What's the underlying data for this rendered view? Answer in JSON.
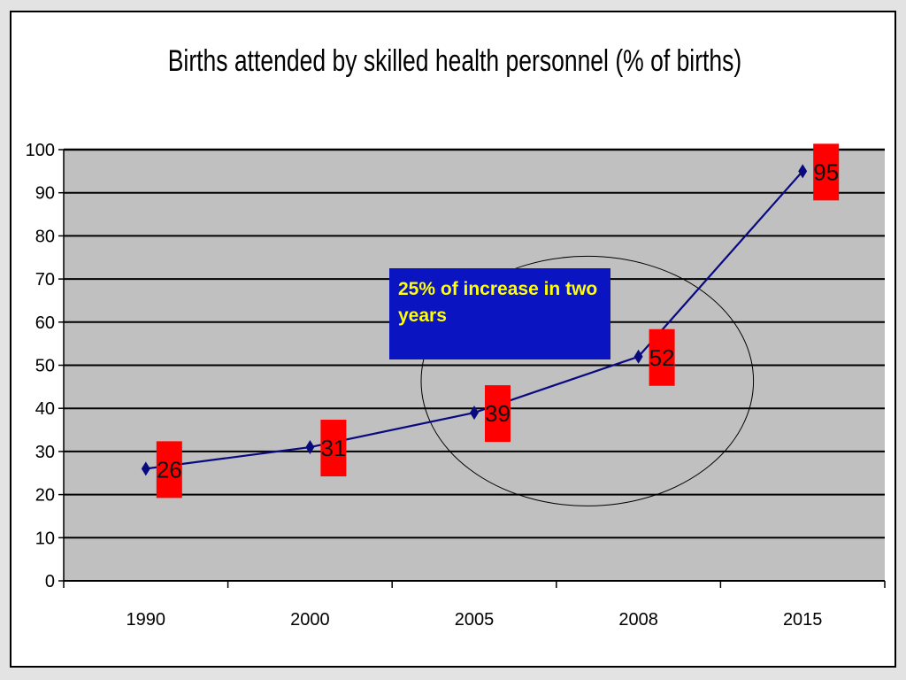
{
  "chart_data": {
    "type": "line",
    "title": "Births attended by skilled health personnel (% of births)",
    "categories": [
      "1990",
      "2000",
      "2005",
      "2008",
      "2015"
    ],
    "series": [
      {
        "values": [
          26,
          31,
          39,
          52,
          95
        ]
      }
    ],
    "data_labels": [
      "26",
      "31",
      "39",
      "52",
      "95"
    ],
    "ylim": [
      0,
      100
    ],
    "yticks": [
      0,
      10,
      20,
      30,
      40,
      50,
      60,
      70,
      80,
      90,
      100
    ],
    "grid": true,
    "legend": "none",
    "colors": {
      "plot_background": "#c0c0c0",
      "gridline": "#000000",
      "line": "#0a0a80",
      "marker": "#0a0a80",
      "data_label_fill": "#ff0000",
      "annotation_fill": "#0a14c0",
      "annotation_text": "#ffff00"
    },
    "annotation": {
      "text": "25% of increase in two years",
      "highlighted_categories": [
        "2005",
        "2008"
      ]
    }
  }
}
